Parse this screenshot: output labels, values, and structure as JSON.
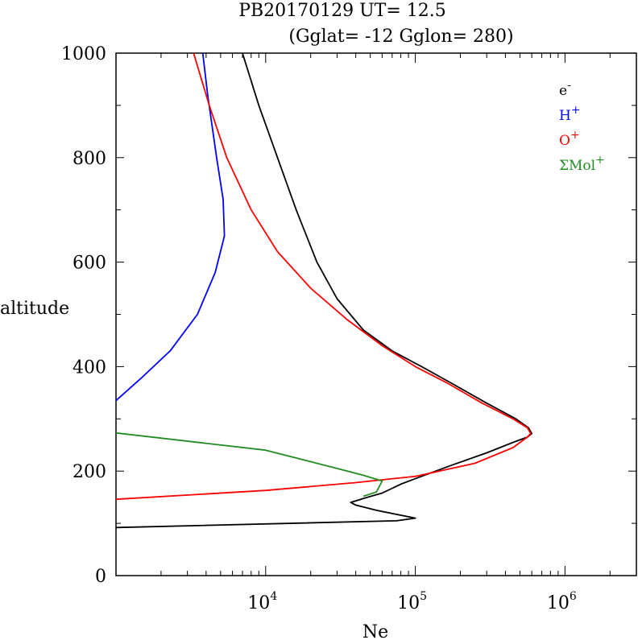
{
  "chart_data": {
    "type": "line",
    "title_line1": "PB20170129   UT=  12.5",
    "title_line2": "(Gglat= -12   Gglon=  280)",
    "xlabel": "Ne",
    "ylabel": "altitude",
    "x_scale": "log",
    "xlim": [
      1000,
      3000000
    ],
    "ylim": [
      0,
      1000
    ],
    "x_ticks": [
      {
        "base": "10",
        "exp": "4",
        "value": 10000
      },
      {
        "base": "10",
        "exp": "5",
        "value": 100000
      },
      {
        "base": "10",
        "exp": "6",
        "value": 1000000
      }
    ],
    "y_ticks": [
      {
        "label": "0",
        "value": 0
      },
      {
        "label": "200",
        "value": 200
      },
      {
        "label": "400",
        "value": 400
      },
      {
        "label": "600",
        "value": 600
      },
      {
        "label": "800",
        "value": 800
      },
      {
        "label": "1000",
        "value": 1000
      }
    ],
    "legend_position": "top-right",
    "series": [
      {
        "name": "e",
        "sup": "-",
        "color": "#000000",
        "points": [
          [
            1000,
            92
          ],
          [
            75000,
            105
          ],
          [
            100000,
            110
          ],
          [
            55000,
            125
          ],
          [
            40000,
            135
          ],
          [
            37000,
            140
          ],
          [
            48000,
            150
          ],
          [
            60000,
            158
          ],
          [
            80000,
            175
          ],
          [
            110000,
            190
          ],
          [
            170000,
            210
          ],
          [
            300000,
            235
          ],
          [
            450000,
            255
          ],
          [
            560000,
            265
          ],
          [
            600000,
            272
          ],
          [
            570000,
            283
          ],
          [
            470000,
            300
          ],
          [
            300000,
            330
          ],
          [
            170000,
            370
          ],
          [
            110000,
            400
          ],
          [
            70000,
            430
          ],
          [
            45000,
            470
          ],
          [
            30000,
            530
          ],
          [
            22000,
            600
          ],
          [
            16000,
            700
          ],
          [
            12000,
            800
          ],
          [
            9000,
            900
          ],
          [
            7000,
            1000
          ]
        ]
      },
      {
        "name": "H",
        "sup": "+",
        "color": "#0000ff",
        "points": [
          [
            1000,
            335
          ],
          [
            1500,
            380
          ],
          [
            2300,
            430
          ],
          [
            3500,
            500
          ],
          [
            4600,
            580
          ],
          [
            5300,
            650
          ],
          [
            5200,
            720
          ],
          [
            4700,
            800
          ],
          [
            4100,
            920
          ],
          [
            3800,
            1000
          ]
        ]
      },
      {
        "name": "O",
        "sup": "+",
        "color": "#ff0000",
        "points": [
          [
            1000,
            146
          ],
          [
            10000,
            163
          ],
          [
            40000,
            178
          ],
          [
            100000,
            190
          ],
          [
            250000,
            215
          ],
          [
            450000,
            245
          ],
          [
            560000,
            265
          ],
          [
            590000,
            272
          ],
          [
            560000,
            283
          ],
          [
            450000,
            300
          ],
          [
            280000,
            330
          ],
          [
            160000,
            370
          ],
          [
            100000,
            400
          ],
          [
            60000,
            440
          ],
          [
            35000,
            490
          ],
          [
            20000,
            550
          ],
          [
            12000,
            620
          ],
          [
            8000,
            700
          ],
          [
            5500,
            800
          ],
          [
            4200,
            900
          ],
          [
            3300,
            1000
          ]
        ]
      },
      {
        "name": "ΣMol",
        "sup": "+",
        "color": "#228b22",
        "points": [
          [
            1000,
            273
          ],
          [
            10000,
            240
          ],
          [
            33000,
            202
          ],
          [
            45000,
            192
          ],
          [
            60000,
            181
          ],
          [
            55000,
            160
          ],
          [
            45000,
            152
          ]
        ]
      }
    ]
  }
}
